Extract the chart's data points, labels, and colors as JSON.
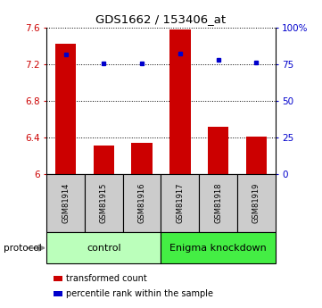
{
  "title": "GDS1662 / 153406_at",
  "samples": [
    "GSM81914",
    "GSM81915",
    "GSM81916",
    "GSM81917",
    "GSM81918",
    "GSM81919"
  ],
  "bar_values": [
    7.42,
    6.31,
    6.34,
    7.58,
    6.52,
    6.41
  ],
  "dot_values": [
    7.31,
    7.21,
    7.21,
    7.32,
    7.25,
    7.22
  ],
  "bar_color": "#cc0000",
  "dot_color": "#0000cc",
  "ylim": [
    6.0,
    7.6
  ],
  "y_ticks": [
    6.0,
    6.4,
    6.8,
    7.2,
    7.6
  ],
  "y_tick_labels": [
    "6",
    "6.4",
    "6.8",
    "7.2",
    "7.6"
  ],
  "y2_ticks": [
    0,
    25,
    50,
    75,
    100
  ],
  "y2_tick_labels": [
    "0",
    "25",
    "50",
    "75",
    "100%"
  ],
  "ytick_color": "#cc0000",
  "y2tick_color": "#0000cc",
  "groups": [
    {
      "label": "control",
      "start": 0,
      "end": 3,
      "color": "#bbffbb"
    },
    {
      "label": "Enigma knockdown",
      "start": 3,
      "end": 6,
      "color": "#44ee44"
    }
  ],
  "protocol_label": "protocol",
  "legend_items": [
    {
      "label": "transformed count",
      "color": "#cc0000"
    },
    {
      "label": "percentile rank within the sample",
      "color": "#0000cc"
    }
  ],
  "bar_width": 0.55,
  "grid_color": "#000000"
}
